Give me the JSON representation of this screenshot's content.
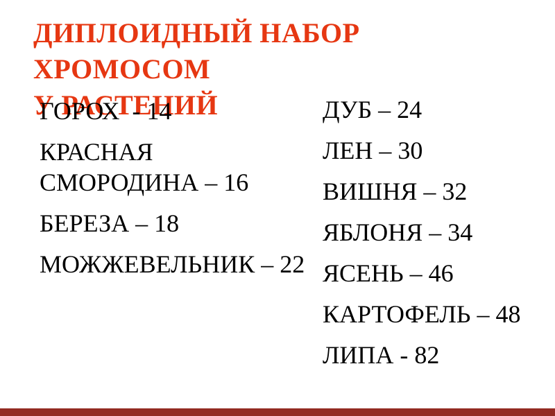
{
  "slide": {
    "background_color": "#ffffff",
    "text_color": "#000000",
    "title": {
      "line1": "ДИПЛОИДНЫЙ НАБОР ХРОМОСОМ",
      "line2": "У РАСТЕНИЙ",
      "color": "#e63712"
    },
    "left_column": {
      "items": [
        {
          "text": "ГОРОХ  - 14",
          "plant": "ГОРОХ",
          "chromosomes": 14
        },
        {
          "text": "КРАСНАЯ СМОРОДИНА – 16",
          "plant": "КРАСНАЯ СМОРОДИНА",
          "chromosomes": 16
        },
        {
          "text": "БЕРЕЗА – 18",
          "plant": "БЕРЕЗА",
          "chromosomes": 18
        },
        {
          "text": "МОЖЖЕВЕЛЬНИК – 22",
          "plant": "МОЖЖЕВЕЛЬНИК",
          "chromosomes": 22
        }
      ]
    },
    "right_column": {
      "items": [
        {
          "text": "ДУБ – 24",
          "plant": "ДУБ",
          "chromosomes": 24
        },
        {
          "text": "ЛЕН – 30",
          "plant": "ЛЕН",
          "chromosomes": 30
        },
        {
          "text": "ВИШНЯ – 32",
          "plant": "ВИШНЯ",
          "chromosomes": 32
        },
        {
          "text": "ЯБЛОНЯ – 34",
          "plant": "ЯБЛОНЯ",
          "chromosomes": 34
        },
        {
          "text": "ЯСЕНЬ – 46",
          "plant": "ЯСЕНЬ",
          "chromosomes": 46
        },
        {
          "text": "КАРТОФЕЛЬ – 48",
          "plant": "КАРТОФЕЛЬ",
          "chromosomes": 48
        },
        {
          "text": "ЛИПА - 82",
          "plant": "ЛИПА",
          "chromosomes": 82
        }
      ]
    },
    "footer_bar_color": "#932b22"
  }
}
